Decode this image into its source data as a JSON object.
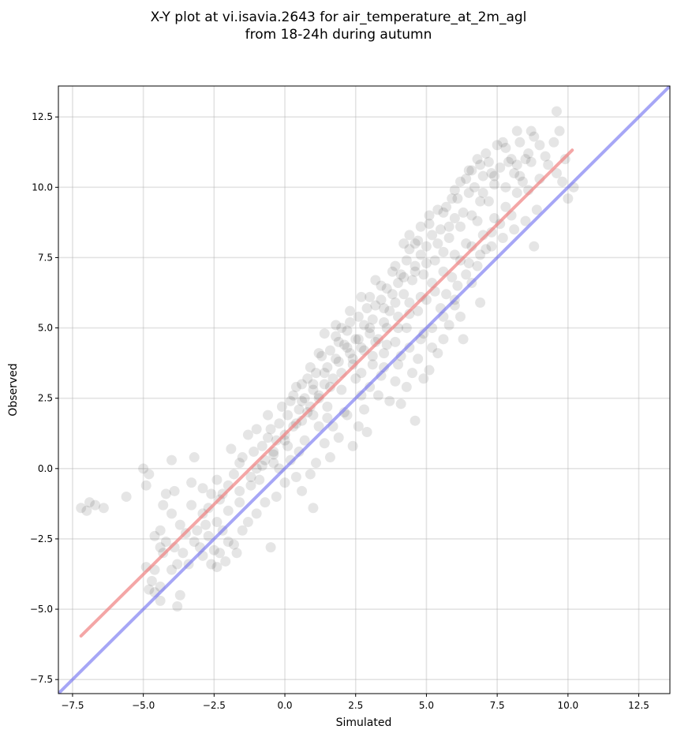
{
  "chart_data": {
    "type": "scatter",
    "title_line1": "X-Y plot at vi.isavia.2643 for air_temperature_at_2m_agl",
    "title_line2": "from 18-24h during autumn",
    "xlabel": "Simulated",
    "ylabel": "Observed",
    "xlim": [
      -8.0,
      13.6
    ],
    "ylim": [
      -8.0,
      13.6
    ],
    "xticks": [
      -7.5,
      -5.0,
      -2.5,
      0.0,
      2.5,
      5.0,
      7.5,
      10.0,
      12.5
    ],
    "yticks": [
      -7.5,
      -5.0,
      -2.5,
      0.0,
      2.5,
      5.0,
      7.5,
      10.0,
      12.5
    ],
    "xtick_labels": [
      "−7.5",
      "−5.0",
      "−2.5",
      "0.0",
      "2.5",
      "5.0",
      "7.5",
      "10.0",
      "12.5"
    ],
    "ytick_labels": [
      "−7.5",
      "−5.0",
      "−2.5",
      "0.0",
      "2.5",
      "5.0",
      "7.5",
      "10.0",
      "12.5"
    ],
    "grid": true,
    "point_color": "#000000",
    "regression_color": "#f08080",
    "identity_color": "#6a6af0",
    "regression_line": {
      "x": [
        -7.2,
        10.15
      ],
      "y": [
        -5.95,
        11.32
      ]
    },
    "identity_line": {
      "x": [
        -8.0,
        13.6
      ],
      "y": [
        -8.0,
        13.6
      ]
    },
    "points": [
      [
        -7.2,
        -1.4
      ],
      [
        -7.0,
        -1.5
      ],
      [
        -6.9,
        -1.2
      ],
      [
        -6.7,
        -1.3
      ],
      [
        -6.4,
        -1.4
      ],
      [
        -5.6,
        -1.0
      ],
      [
        -5.0,
        0.0
      ],
      [
        -4.8,
        -0.2
      ],
      [
        -4.9,
        -0.6
      ],
      [
        -4.0,
        0.3
      ],
      [
        -3.2,
        0.4
      ],
      [
        -3.3,
        -0.5
      ],
      [
        -4.2,
        -0.9
      ],
      [
        -3.9,
        -0.8
      ],
      [
        -4.3,
        -1.3
      ],
      [
        -4.0,
        -1.6
      ],
      [
        -3.7,
        -2.0
      ],
      [
        -3.5,
        -2.3
      ],
      [
        -4.4,
        -2.2
      ],
      [
        -4.6,
        -2.4
      ],
      [
        -4.2,
        -2.6
      ],
      [
        -4.4,
        -2.8
      ],
      [
        -3.9,
        -2.8
      ],
      [
        -4.3,
        -3.0
      ],
      [
        -3.8,
        -3.4
      ],
      [
        -4.0,
        -3.6
      ],
      [
        -3.4,
        -3.4
      ],
      [
        -4.9,
        -3.5
      ],
      [
        -4.6,
        -3.6
      ],
      [
        -4.7,
        -4.0
      ],
      [
        -4.4,
        -4.2
      ],
      [
        -4.8,
        -4.3
      ],
      [
        -4.6,
        -4.4
      ],
      [
        -3.7,
        -4.5
      ],
      [
        -4.4,
        -4.7
      ],
      [
        -3.8,
        -4.9
      ],
      [
        -3.0,
        -2.8
      ],
      [
        -2.9,
        -3.1
      ],
      [
        -3.2,
        -2.6
      ],
      [
        -2.7,
        -2.4
      ],
      [
        -2.5,
        -2.9
      ],
      [
        -2.3,
        -3.0
      ],
      [
        -2.0,
        -2.6
      ],
      [
        -1.8,
        -2.7
      ],
      [
        -1.7,
        -3.0
      ],
      [
        -2.1,
        -3.3
      ],
      [
        -2.6,
        -3.4
      ],
      [
        -2.4,
        -3.5
      ],
      [
        -3.3,
        -1.3
      ],
      [
        -2.9,
        -1.6
      ],
      [
        -2.6,
        -0.9
      ],
      [
        -2.3,
        -1.1
      ],
      [
        -2.0,
        -0.6
      ],
      [
        -1.6,
        -0.8
      ],
      [
        -1.8,
        -0.2
      ],
      [
        -1.6,
        0.2
      ],
      [
        -1.2,
        -0.3
      ],
      [
        -1.5,
        0.4
      ],
      [
        -1.0,
        0.0
      ],
      [
        -1.1,
        0.6
      ],
      [
        -0.8,
        0.8
      ],
      [
        -0.6,
        1.1
      ],
      [
        -0.4,
        0.6
      ],
      [
        -0.7,
        0.3
      ],
      [
        -0.3,
        1.0
      ],
      [
        -0.5,
        1.4
      ],
      [
        -0.2,
        1.6
      ],
      [
        0.0,
        1.2
      ],
      [
        0.1,
        1.9
      ],
      [
        0.3,
        1.5
      ],
      [
        0.5,
        2.1
      ],
      [
        0.6,
        1.7
      ],
      [
        0.2,
        2.4
      ],
      [
        0.4,
        2.9
      ],
      [
        0.7,
        2.5
      ],
      [
        0.9,
        2.2
      ],
      [
        1.0,
        2.8
      ],
      [
        1.2,
        2.5
      ],
      [
        0.8,
        3.2
      ],
      [
        1.1,
        3.4
      ],
      [
        1.4,
        3.0
      ],
      [
        1.5,
        3.6
      ],
      [
        1.7,
        3.2
      ],
      [
        1.3,
        4.0
      ],
      [
        1.6,
        4.2
      ],
      [
        1.9,
        3.8
      ],
      [
        2.1,
        4.4
      ],
      [
        1.8,
        4.7
      ],
      [
        2.3,
        4.1
      ],
      [
        2.0,
        5.0
      ],
      [
        2.5,
        4.6
      ],
      [
        2.2,
        4.9
      ],
      [
        2.7,
        4.3
      ],
      [
        2.4,
        3.7
      ],
      [
        2.8,
        5.1
      ],
      [
        3.0,
        4.8
      ],
      [
        2.6,
        5.4
      ],
      [
        3.1,
        5.3
      ],
      [
        3.3,
        4.6
      ],
      [
        3.2,
        5.8
      ],
      [
        3.5,
        5.2
      ],
      [
        3.4,
        6.0
      ],
      [
        3.7,
        5.6
      ],
      [
        3.6,
        6.4
      ],
      [
        3.9,
        5.9
      ],
      [
        4.0,
        6.6
      ],
      [
        3.8,
        7.0
      ],
      [
        4.2,
        6.2
      ],
      [
        4.1,
        6.9
      ],
      [
        4.3,
        7.4
      ],
      [
        4.5,
        6.7
      ],
      [
        4.4,
        7.8
      ],
      [
        4.6,
        7.2
      ],
      [
        4.8,
        7.6
      ],
      [
        4.7,
        8.1
      ],
      [
        5.0,
        7.9
      ],
      [
        5.2,
        8.3
      ],
      [
        4.9,
        6.9
      ],
      [
        5.3,
        7.4
      ],
      [
        5.5,
        8.5
      ],
      [
        5.6,
        7.7
      ],
      [
        5.8,
        8.6
      ],
      [
        6.0,
        8.9
      ],
      [
        5.7,
        9.3
      ],
      [
        6.1,
        9.6
      ],
      [
        6.3,
        9.1
      ],
      [
        6.5,
        9.8
      ],
      [
        6.2,
        10.2
      ],
      [
        6.7,
        10.0
      ],
      [
        6.9,
        9.5
      ],
      [
        6.6,
        10.6
      ],
      [
        7.0,
        10.4
      ],
      [
        7.2,
        10.9
      ],
      [
        7.4,
        10.1
      ],
      [
        7.1,
        11.2
      ],
      [
        7.6,
        10.7
      ],
      [
        7.8,
        11.4
      ],
      [
        7.7,
        11.6
      ],
      [
        8.0,
        11.0
      ],
      [
        8.1,
        10.5
      ],
      [
        8.3,
        11.6
      ],
      [
        8.5,
        11.0
      ],
      [
        8.7,
        12.0
      ],
      [
        8.8,
        11.8
      ],
      [
        9.2,
        11.1
      ],
      [
        9.6,
        12.7
      ],
      [
        9.7,
        12.0
      ],
      [
        9.9,
        11.0
      ],
      [
        10.2,
        10.0
      ],
      [
        10.0,
        9.6
      ],
      [
        8.9,
        9.2
      ],
      [
        8.8,
        7.9
      ],
      [
        9.6,
        10.5
      ],
      [
        9.8,
        10.2
      ],
      [
        8.6,
        9.9
      ],
      [
        9.0,
        10.3
      ],
      [
        7.3,
        8.4
      ],
      [
        7.1,
        7.8
      ],
      [
        6.8,
        7.2
      ],
      [
        6.6,
        6.6
      ],
      [
        6.4,
        6.9
      ],
      [
        6.9,
        5.9
      ],
      [
        6.2,
        5.4
      ],
      [
        6.0,
        6.0
      ],
      [
        5.8,
        5.1
      ],
      [
        5.6,
        4.6
      ],
      [
        6.3,
        4.6
      ],
      [
        5.4,
        4.1
      ],
      [
        5.1,
        3.5
      ],
      [
        4.9,
        4.8
      ],
      [
        4.7,
        3.9
      ],
      [
        4.5,
        3.4
      ],
      [
        4.3,
        2.9
      ],
      [
        4.6,
        1.7
      ],
      [
        4.1,
        2.3
      ],
      [
        3.9,
        3.1
      ],
      [
        3.7,
        2.4
      ],
      [
        3.5,
        3.6
      ],
      [
        3.3,
        2.6
      ],
      [
        3.0,
        2.9
      ],
      [
        2.8,
        2.1
      ],
      [
        2.6,
        1.5
      ],
      [
        2.9,
        1.3
      ],
      [
        2.4,
        0.8
      ],
      [
        2.2,
        1.9
      ],
      [
        1.9,
        1.1
      ],
      [
        1.7,
        1.5
      ],
      [
        1.6,
        0.4
      ],
      [
        1.4,
        0.9
      ],
      [
        1.1,
        0.2
      ],
      [
        0.9,
        -0.2
      ],
      [
        1.0,
        -1.4
      ],
      [
        0.6,
        -0.8
      ],
      [
        0.4,
        -0.3
      ],
      [
        0.2,
        0.3
      ],
      [
        0.0,
        -0.5
      ],
      [
        -0.3,
        -1.0
      ],
      [
        -0.5,
        -2.8
      ],
      [
        -0.7,
        -1.2
      ],
      [
        -1.0,
        -1.6
      ],
      [
        -1.3,
        -1.9
      ],
      [
        -1.5,
        -2.2
      ],
      [
        -2.2,
        -2.2
      ],
      [
        -2.8,
        -2.0
      ],
      [
        -2.9,
        -0.7
      ],
      [
        -2.4,
        -0.4
      ],
      [
        -1.9,
        0.7
      ],
      [
        -1.3,
        1.2
      ],
      [
        -1.0,
        1.4
      ],
      [
        -0.6,
        1.9
      ],
      [
        -0.1,
        2.2
      ],
      [
        0.3,
        2.6
      ],
      [
        0.6,
        3.0
      ],
      [
        0.9,
        3.6
      ],
      [
        1.2,
        4.1
      ],
      [
        1.4,
        4.8
      ],
      [
        1.8,
        5.1
      ],
      [
        2.3,
        5.6
      ],
      [
        2.7,
        6.1
      ],
      [
        3.0,
        6.1
      ],
      [
        3.4,
        6.5
      ],
      [
        3.9,
        7.2
      ],
      [
        4.2,
        8.0
      ],
      [
        4.4,
        8.3
      ],
      [
        4.8,
        8.6
      ],
      [
        5.1,
        9.0
      ],
      [
        5.4,
        9.2
      ],
      [
        5.9,
        9.6
      ],
      [
        6.4,
        10.3
      ],
      [
        6.8,
        11.0
      ],
      [
        7.5,
        11.5
      ],
      [
        8.2,
        12.0
      ],
      [
        4.0,
        5.0
      ],
      [
        4.4,
        5.5
      ],
      [
        3.6,
        4.4
      ],
      [
        3.1,
        4.0
      ],
      [
        2.5,
        3.2
      ],
      [
        2.0,
        2.8
      ],
      [
        1.5,
        2.2
      ],
      [
        1.2,
        1.5
      ],
      [
        0.7,
        1.0
      ],
      [
        0.1,
        0.8
      ],
      [
        -0.4,
        0.2
      ],
      [
        -0.9,
        -0.4
      ],
      [
        5.0,
        6.0
      ],
      [
        5.3,
        6.3
      ],
      [
        5.5,
        5.7
      ],
      [
        5.9,
        6.8
      ],
      [
        6.2,
        7.4
      ],
      [
        6.6,
        7.9
      ],
      [
        7.0,
        8.3
      ],
      [
        7.4,
        8.9
      ],
      [
        7.8,
        9.3
      ],
      [
        8.2,
        9.8
      ],
      [
        8.4,
        10.2
      ],
      [
        8.0,
        9.0
      ],
      [
        7.6,
        8.7
      ],
      [
        7.2,
        9.5
      ],
      [
        6.8,
        8.8
      ],
      [
        6.4,
        8.0
      ],
      [
        6.0,
        7.6
      ],
      [
        5.6,
        7.0
      ],
      [
        5.2,
        6.6
      ],
      [
        4.8,
        6.1
      ],
      [
        4.4,
        5.9
      ],
      [
        4.0,
        5.4
      ],
      [
        3.6,
        5.0
      ],
      [
        3.2,
        4.5
      ],
      [
        2.8,
        4.2
      ],
      [
        2.4,
        3.9
      ],
      [
        2.0,
        3.4
      ],
      [
        1.6,
        2.9
      ],
      [
        1.2,
        2.6
      ],
      [
        0.8,
        2.0
      ],
      [
        0.4,
        1.6
      ],
      [
        0.0,
        1.0
      ],
      [
        -0.4,
        0.5
      ],
      [
        -0.8,
        0.1
      ],
      [
        -1.2,
        -0.6
      ],
      [
        -1.6,
        -1.2
      ],
      [
        -2.0,
        -1.5
      ],
      [
        -2.4,
        -1.9
      ],
      [
        -3.6,
        -3.0
      ],
      [
        -3.1,
        -2.2
      ],
      [
        -2.7,
        -1.4
      ],
      [
        -2.2,
        -0.9
      ],
      [
        3.8,
        6.2
      ],
      [
        4.2,
        6.8
      ],
      [
        4.6,
        7.0
      ],
      [
        5.0,
        7.3
      ],
      [
        3.5,
        5.7
      ],
      [
        3.0,
        5.0
      ],
      [
        2.6,
        4.6
      ],
      [
        2.2,
        4.3
      ],
      [
        1.8,
        3.9
      ],
      [
        1.4,
        3.4
      ],
      [
        1.0,
        3.0
      ],
      [
        0.6,
        2.4
      ],
      [
        5.4,
        8.0
      ],
      [
        5.8,
        8.2
      ],
      [
        6.2,
        8.6
      ],
      [
        6.6,
        9.0
      ],
      [
        7.0,
        9.8
      ],
      [
        7.4,
        10.4
      ],
      [
        7.8,
        10.0
      ],
      [
        8.2,
        10.8
      ],
      [
        8.6,
        11.2
      ],
      [
        9.0,
        11.5
      ],
      [
        9.3,
        10.8
      ],
      [
        9.5,
        11.6
      ],
      [
        5.2,
        4.3
      ],
      [
        4.9,
        3.2
      ],
      [
        4.1,
        4.0
      ],
      [
        3.4,
        3.3
      ],
      [
        2.7,
        2.6
      ],
      [
        2.1,
        2.0
      ],
      [
        1.5,
        1.8
      ],
      [
        1.0,
        1.9
      ],
      [
        0.5,
        0.6
      ],
      [
        -0.2,
        0.0
      ],
      [
        3.2,
        6.7
      ],
      [
        2.9,
        5.7
      ],
      [
        2.3,
        5.2
      ],
      [
        1.9,
        4.5
      ],
      [
        4.6,
        8.0
      ],
      [
        5.1,
        8.7
      ],
      [
        5.6,
        9.1
      ],
      [
        6.0,
        9.9
      ],
      [
        6.5,
        10.6
      ],
      [
        6.9,
        10.8
      ],
      [
        7.3,
        10.5
      ],
      [
        7.9,
        10.9
      ],
      [
        8.3,
        10.4
      ],
      [
        8.7,
        10.9
      ],
      [
        4.3,
        5.0
      ],
      [
        4.7,
        5.6
      ],
      [
        3.9,
        4.5
      ],
      [
        3.5,
        4.1
      ],
      [
        3.1,
        3.7
      ],
      [
        2.7,
        3.4
      ],
      [
        5.7,
        6.2
      ],
      [
        6.1,
        6.5
      ],
      [
        6.5,
        7.3
      ],
      [
        6.9,
        7.6
      ],
      [
        7.3,
        7.9
      ],
      [
        7.7,
        8.2
      ],
      [
        8.1,
        8.5
      ],
      [
        8.5,
        8.8
      ],
      [
        4.0,
        3.7
      ],
      [
        4.4,
        4.3
      ],
      [
        4.8,
        4.6
      ],
      [
        5.2,
        5.0
      ],
      [
        5.6,
        5.4
      ],
      [
        6.0,
        5.8
      ]
    ]
  }
}
